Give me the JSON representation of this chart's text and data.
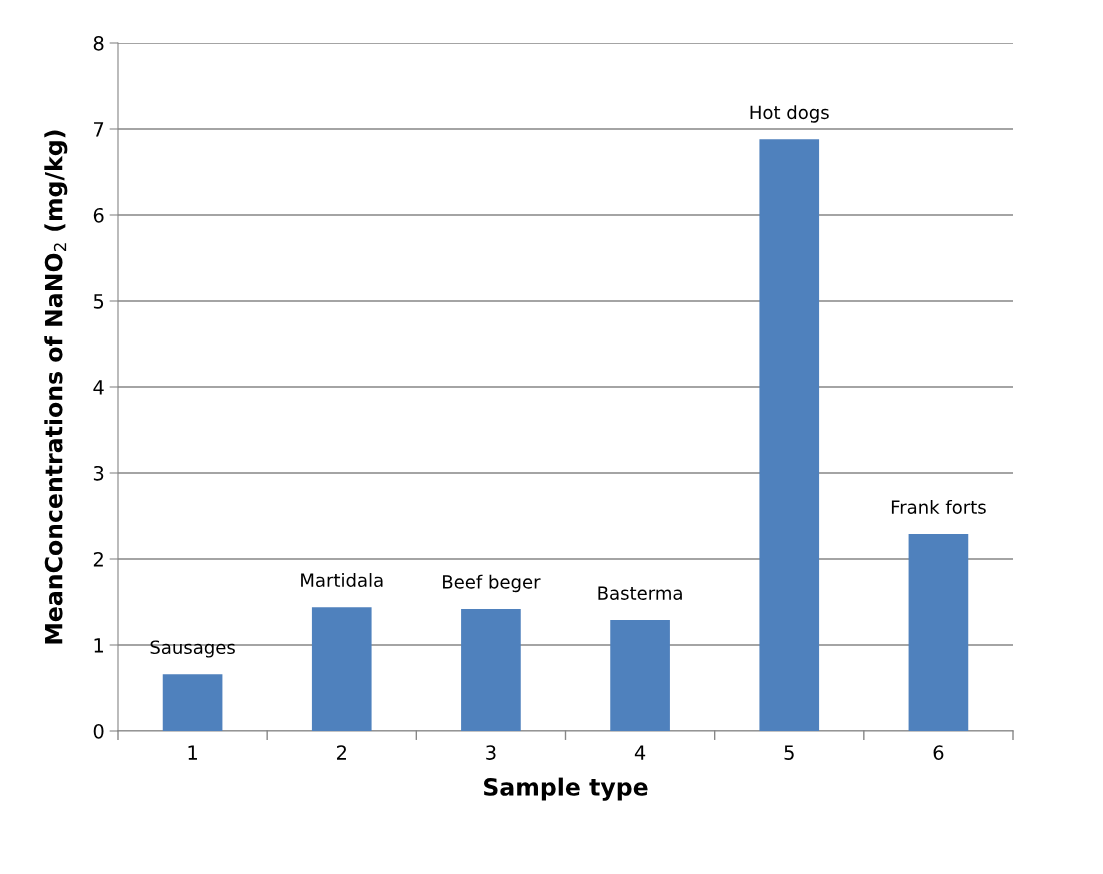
{
  "chart_data": {
    "type": "bar",
    "xlabel": "Sample type",
    "ylabel": "MeanConcentrations of NaNO$_{2}$ (mg/kg)",
    "categories": [
      "1",
      "2",
      "3",
      "4",
      "5",
      "6"
    ],
    "values": [
      0.66,
      1.44,
      1.42,
      1.29,
      6.88,
      2.29
    ],
    "color": "#4f81bd",
    "ylim": [
      0,
      8
    ],
    "yticks": [
      0,
      1,
      2,
      3,
      4,
      5,
      6,
      7,
      8
    ],
    "grid": "y",
    "legend": false,
    "annotations": [
      {
        "text": "Sausages",
        "x": "1",
        "y": 0.66
      },
      {
        "text": "Martidala",
        "x": "2",
        "y": 1.44
      },
      {
        "text": "Beef beger",
        "x": "3",
        "y": 1.42
      },
      {
        "text": "Basterma",
        "x": "4",
        "y": 1.29
      },
      {
        "text": "Hot dogs",
        "x": "5",
        "y": 6.88
      },
      {
        "text": "Frank forts",
        "x": "6",
        "y": 2.29
      }
    ]
  }
}
